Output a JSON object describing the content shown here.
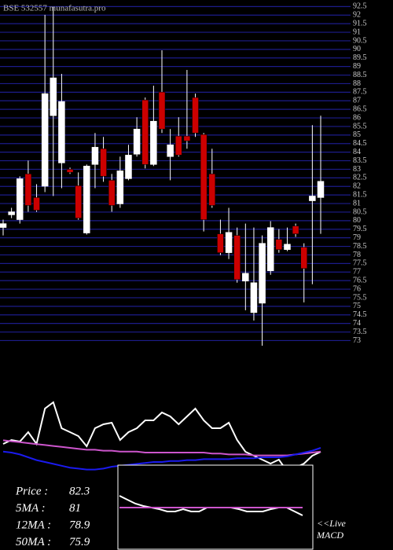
{
  "chart_data": [
    {
      "type": "candlestick",
      "title": "BSE 532557 munafasutra.pro",
      "open": [
        79.6,
        80.34,
        80.06,
        82.73,
        81.35,
        82.01,
        86.13,
        83.37,
        83.0,
        82.04,
        79.28,
        83.28,
        84.2,
        82.36,
        80.98,
        82.45,
        83.88,
        87.05,
        83.28,
        87.51,
        83.74,
        84.94,
        84.94,
        87.19,
        85.03,
        82.73,
        79.23,
        78.13,
        79.14,
        76.47,
        74.63,
        75.18,
        77.07,
        78.91,
        78.31,
        79.69,
        78.45,
        81.16,
        81.35
      ],
      "high": [
        80.06,
        80.75,
        82.59,
        83.51,
        82.13,
        92.02,
        92.48,
        88.57,
        83.1,
        82.82,
        83.28,
        85.12,
        84.89,
        82.73,
        83.74,
        84.43,
        86.04,
        87.19,
        87.88,
        89.95,
        85.35,
        86.04,
        88.8,
        87.42,
        85.12,
        84.2,
        80.06,
        80.75,
        79.6,
        79.83,
        79.6,
        79.14,
        79.97,
        79.51,
        79.6,
        79.83,
        78.68,
        85.58,
        86.13
      ],
      "low": [
        79.14,
        80.15,
        79.83,
        80.52,
        80.52,
        81.67,
        81.44,
        81.9,
        82.73,
        80.06,
        79.19,
        81.9,
        82.27,
        80.52,
        80.75,
        82.36,
        83.74,
        83.05,
        83.19,
        85.12,
        82.36,
        83.74,
        84.2,
        84.89,
        79.37,
        80.75,
        77.99,
        77.76,
        76.38,
        74.77,
        74.17,
        72.7,
        76.84,
        78.13,
        78.22,
        79.05,
        75.23,
        76.29,
        79.23
      ],
      "close": [
        79.83,
        80.52,
        82.45,
        80.89,
        80.61,
        87.42,
        88.34,
        86.96,
        82.82,
        80.15,
        83.19,
        84.29,
        82.59,
        80.89,
        82.91,
        83.83,
        85.35,
        83.28,
        85.81,
        85.35,
        84.43,
        83.83,
        84.66,
        85.12,
        80.06,
        80.89,
        78.13,
        79.32,
        76.56,
        76.93,
        76.38,
        78.68,
        79.6,
        78.31,
        78.63,
        79.23,
        77.21,
        81.44,
        82.3
      ],
      "up_color": "#ffffff",
      "down_color": "#cc0000",
      "grid": true,
      "grid_color": "#1c1c8a",
      "ylim": [
        72.7,
        92.7
      ],
      "yticks": [
        73,
        73.5,
        74,
        74.5,
        75,
        75.5,
        76,
        76.5,
        77,
        77.5,
        78,
        78.5,
        79,
        79.5,
        80,
        80.5,
        81,
        81.5,
        82,
        82.5,
        83,
        83.5,
        84,
        84.5,
        85,
        85.5,
        86,
        86.5,
        87,
        87.5,
        88,
        88.5,
        89,
        89.5,
        90,
        90.5,
        91,
        91.5,
        92,
        92.5
      ]
    },
    {
      "type": "line",
      "ylim": [
        0,
        100
      ],
      "series": [
        {
          "color": "#ffffff",
          "values": [
            29.2,
            33.3,
            31.7,
            41.7,
            29.2,
            66.7,
            73.3,
            45.8,
            41.7,
            37.5,
            26.7,
            45.8,
            50,
            51.7,
            33.3,
            41.7,
            45.8,
            54.2,
            54.2,
            62.5,
            58.3,
            50,
            58.3,
            66.7,
            54.2,
            45.8,
            45.8,
            51.7,
            33.3,
            20.8,
            16.7,
            12.5,
            8.3,
            12.5,
            0,
            4.2,
            8.3,
            16.7,
            20.8
          ]
        },
        {
          "color": "#cc55cc",
          "values": [
            33,
            32,
            31,
            30,
            29,
            28,
            27,
            26,
            25,
            24,
            23,
            23,
            22,
            22,
            21,
            21,
            21,
            20,
            20,
            20,
            20,
            20,
            20,
            20,
            20,
            19,
            19,
            18,
            18,
            18,
            17,
            17,
            17,
            17,
            17,
            18,
            19,
            20,
            21
          ]
        },
        {
          "color": "#1a1aee",
          "values": [
            21,
            20,
            18,
            15,
            12,
            10,
            8,
            6,
            4,
            3,
            2,
            2,
            3,
            5,
            6,
            7,
            8,
            9,
            10,
            10,
            11,
            11,
            12,
            12,
            13,
            13,
            13,
            13,
            14,
            14,
            14,
            15,
            15,
            15,
            16,
            18,
            20,
            22,
            25
          ]
        }
      ]
    },
    {
      "type": "line",
      "title": "<<Live",
      "subtitle": "MACD",
      "ylim": [
        -1,
        1
      ],
      "series": [
        {
          "color": "#ffffff",
          "values": [
            0.3,
            0.2,
            0.1,
            0.04,
            0,
            -0.04,
            -0.1,
            -0.1,
            -0.04,
            -0.1,
            -0.1,
            0,
            0,
            0,
            0,
            -0.04,
            -0.1,
            -0.1,
            -0.1,
            -0.04,
            0,
            0,
            -0.1,
            -0.2
          ]
        },
        {
          "color": "#cc55cc",
          "values": [
            0,
            0,
            0,
            0,
            0,
            0,
            0,
            0,
            0,
            0,
            0,
            0,
            0,
            0,
            0,
            0,
            0,
            0,
            0,
            0,
            0,
            0,
            0,
            0
          ]
        }
      ]
    }
  ],
  "info": [
    {
      "label": "Price  :",
      "value": 82.3
    },
    {
      "label": "5MA :",
      "value": 81
    },
    {
      "label": "12MA :",
      "value": 78.9
    },
    {
      "label": "50MA :",
      "value": 75.9
    }
  ]
}
